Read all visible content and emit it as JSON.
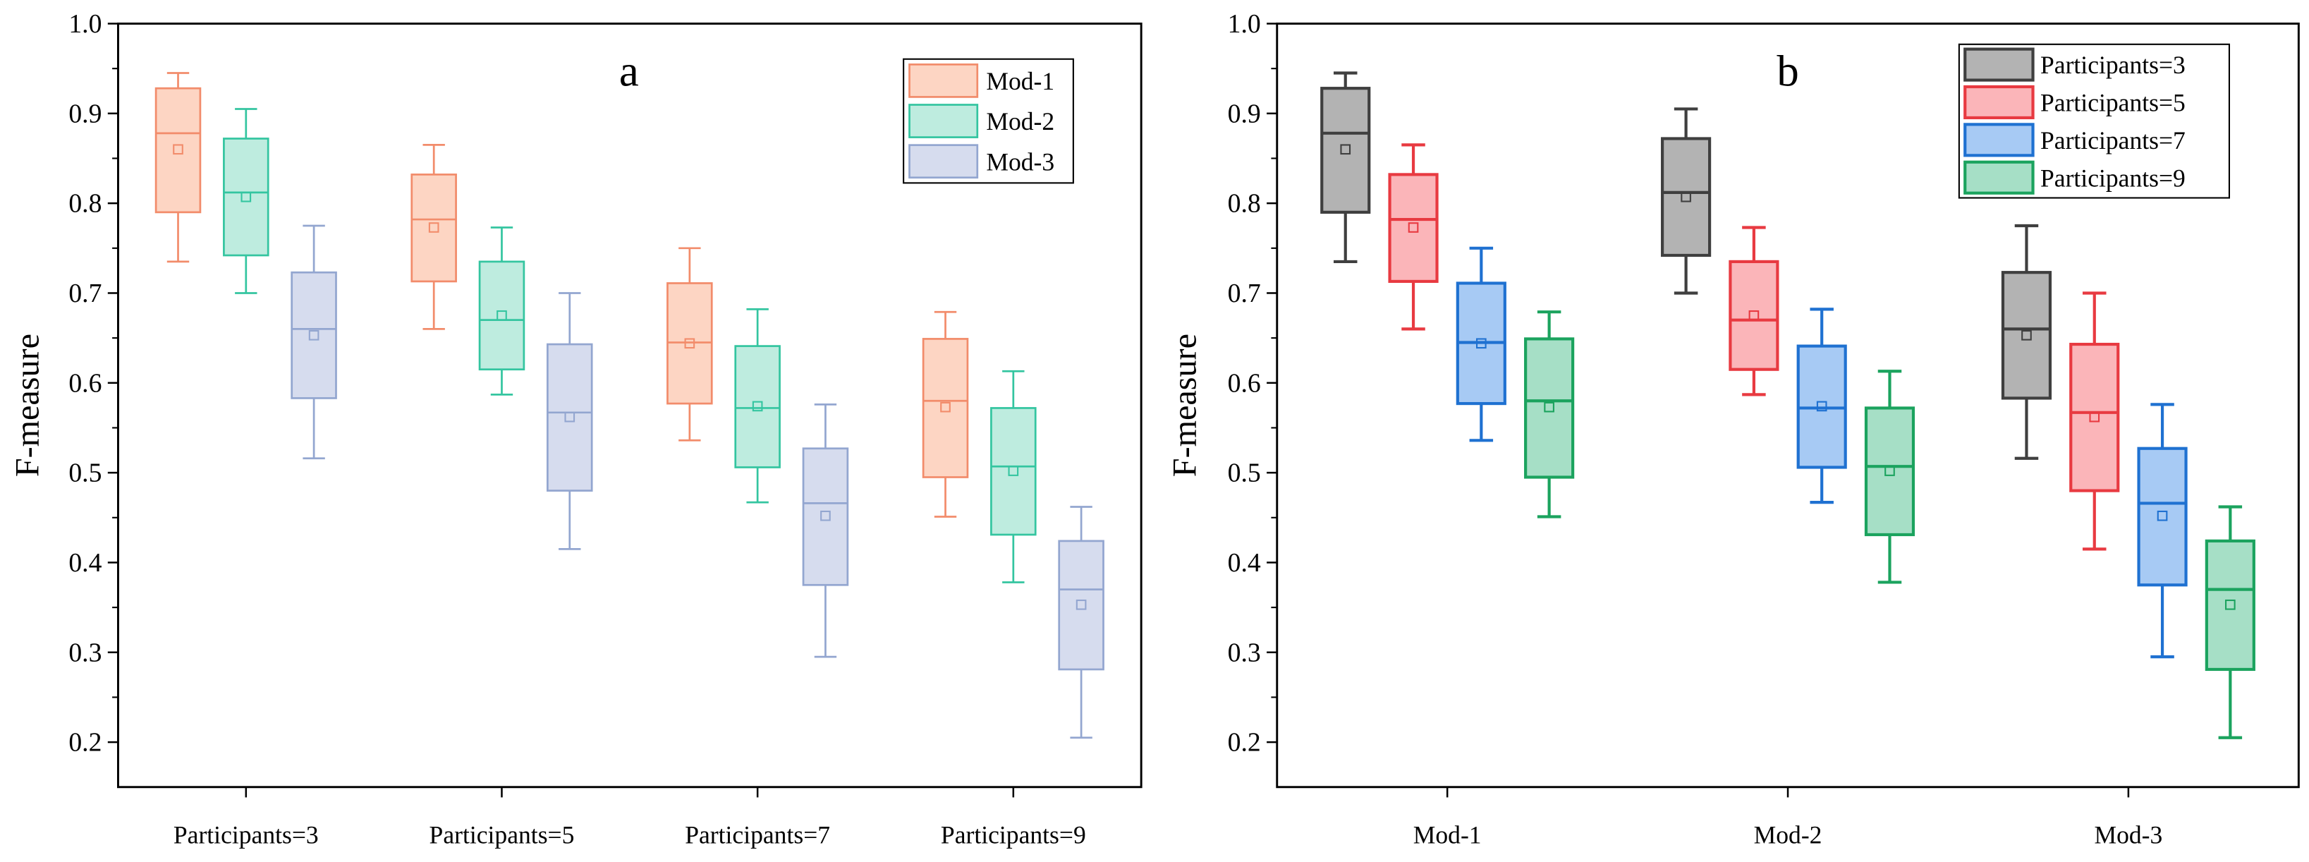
{
  "chart_data": [
    {
      "type": "box",
      "panel_label": "a",
      "ylabel": "F-measure",
      "ylim": [
        0.15,
        1.0
      ],
      "yticks": [
        "0.2",
        "0.3",
        "0.4",
        "0.5",
        "0.6",
        "0.7",
        "0.8",
        "0.9",
        "1.0"
      ],
      "grid": false,
      "legend_position": "top-right",
      "categories": [
        "Participants=3",
        "Participants=5",
        "Participants=7",
        "Participants=9"
      ],
      "series": [
        {
          "name": "Mod-1",
          "fill": "#FDD5C3",
          "stroke": "#F28C6B",
          "values": [
            {
              "max": 0.945,
              "q3": 0.928,
              "median": 0.878,
              "mean": 0.86,
              "q1": 0.79,
              "min": 0.735
            },
            {
              "max": 0.865,
              "q3": 0.832,
              "median": 0.782,
              "mean": 0.773,
              "q1": 0.713,
              "min": 0.66
            },
            {
              "max": 0.75,
              "q3": 0.711,
              "median": 0.645,
              "mean": 0.644,
              "q1": 0.577,
              "min": 0.536
            },
            {
              "max": 0.679,
              "q3": 0.649,
              "median": 0.58,
              "mean": 0.573,
              "q1": 0.495,
              "min": 0.451
            }
          ]
        },
        {
          "name": "Mod-2",
          "fill": "#BEECDF",
          "stroke": "#34C5A0",
          "values": [
            {
              "max": 0.905,
              "q3": 0.872,
              "median": 0.812,
              "mean": 0.807,
              "q1": 0.742,
              "min": 0.7
            },
            {
              "max": 0.773,
              "q3": 0.735,
              "median": 0.67,
              "mean": 0.675,
              "q1": 0.615,
              "min": 0.587
            },
            {
              "max": 0.682,
              "q3": 0.641,
              "median": 0.572,
              "mean": 0.574,
              "q1": 0.506,
              "min": 0.467
            },
            {
              "max": 0.613,
              "q3": 0.572,
              "median": 0.507,
              "mean": 0.502,
              "q1": 0.431,
              "min": 0.378
            }
          ]
        },
        {
          "name": "Mod-3",
          "fill": "#D6DCEE",
          "stroke": "#93A6D0",
          "values": [
            {
              "max": 0.775,
              "q3": 0.723,
              "median": 0.66,
              "mean": 0.653,
              "q1": 0.583,
              "min": 0.516
            },
            {
              "max": 0.7,
              "q3": 0.643,
              "median": 0.567,
              "mean": 0.562,
              "q1": 0.48,
              "min": 0.415
            },
            {
              "max": 0.576,
              "q3": 0.527,
              "median": 0.466,
              "mean": 0.452,
              "q1": 0.375,
              "min": 0.295
            },
            {
              "max": 0.462,
              "q3": 0.424,
              "median": 0.37,
              "mean": 0.353,
              "q1": 0.281,
              "min": 0.205
            }
          ]
        }
      ]
    },
    {
      "type": "box",
      "panel_label": "b",
      "ylabel": "F-measure",
      "ylim": [
        0.15,
        1.0
      ],
      "yticks": [
        "0.2",
        "0.3",
        "0.4",
        "0.5",
        "0.6",
        "0.7",
        "0.8",
        "0.9",
        "1.0"
      ],
      "grid": false,
      "legend_position": "top-right",
      "categories": [
        "Mod-1",
        "Mod-2",
        "Mod-3"
      ],
      "series": [
        {
          "name": "Participants=3",
          "fill": "#B3B3B3",
          "stroke": "#3F3F3F",
          "values": [
            {
              "max": 0.945,
              "q3": 0.928,
              "median": 0.878,
              "mean": 0.86,
              "q1": 0.79,
              "min": 0.735
            },
            {
              "max": 0.905,
              "q3": 0.872,
              "median": 0.812,
              "mean": 0.807,
              "q1": 0.742,
              "min": 0.7
            },
            {
              "max": 0.775,
              "q3": 0.723,
              "median": 0.66,
              "mean": 0.653,
              "q1": 0.583,
              "min": 0.516
            }
          ]
        },
        {
          "name": "Participants=5",
          "fill": "#FBB5B9",
          "stroke": "#E83A41",
          "values": [
            {
              "max": 0.865,
              "q3": 0.832,
              "median": 0.782,
              "mean": 0.773,
              "q1": 0.713,
              "min": 0.66
            },
            {
              "max": 0.773,
              "q3": 0.735,
              "median": 0.67,
              "mean": 0.675,
              "q1": 0.615,
              "min": 0.587
            },
            {
              "max": 0.7,
              "q3": 0.643,
              "median": 0.567,
              "mean": 0.562,
              "q1": 0.48,
              "min": 0.415
            }
          ]
        },
        {
          "name": "Participants=7",
          "fill": "#A7CAF4",
          "stroke": "#1F71D1",
          "values": [
            {
              "max": 0.75,
              "q3": 0.711,
              "median": 0.645,
              "mean": 0.644,
              "q1": 0.577,
              "min": 0.536
            },
            {
              "max": 0.682,
              "q3": 0.641,
              "median": 0.572,
              "mean": 0.574,
              "q1": 0.506,
              "min": 0.467
            },
            {
              "max": 0.576,
              "q3": 0.527,
              "median": 0.466,
              "mean": 0.452,
              "q1": 0.375,
              "min": 0.295
            }
          ]
        },
        {
          "name": "Participants=9",
          "fill": "#A6DFC6",
          "stroke": "#1BA35E",
          "values": [
            {
              "max": 0.679,
              "q3": 0.649,
              "median": 0.58,
              "mean": 0.573,
              "q1": 0.495,
              "min": 0.451
            },
            {
              "max": 0.613,
              "q3": 0.572,
              "median": 0.507,
              "mean": 0.502,
              "q1": 0.431,
              "min": 0.378
            },
            {
              "max": 0.462,
              "q3": 0.424,
              "median": 0.37,
              "mean": 0.353,
              "q1": 0.281,
              "min": 0.205
            }
          ]
        }
      ]
    }
  ]
}
